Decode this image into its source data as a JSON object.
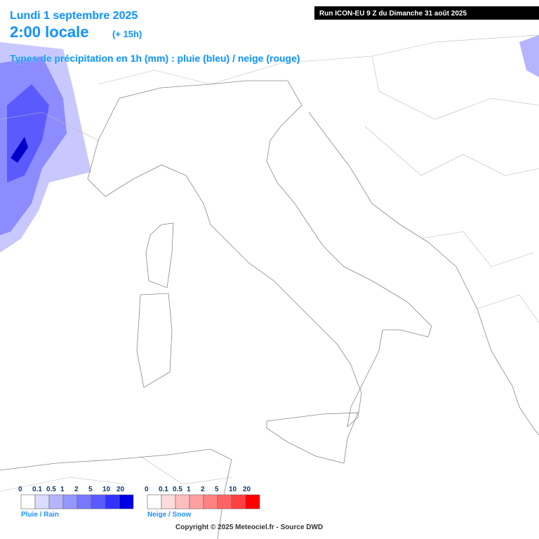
{
  "header": {
    "date": "Lundi 1 septembre 2025",
    "time": "2:00 locale",
    "lead": "(+ 15h)",
    "subtitle": "Types de précipitation en 1h (mm) : pluie (bleu) / neige (rouge)",
    "run": "Run ICON-EU 9 Z du Dimanche 31 août 2025"
  },
  "legends": [
    {
      "label": "Pluie / Rain",
      "ticks": [
        "0",
        "0.1",
        "0.5",
        "1",
        "2",
        "5",
        "10",
        "20"
      ],
      "colors": [
        "#ffffff",
        "#dcdcff",
        "#b4b4ff",
        "#9696ff",
        "#7878ff",
        "#5a5aff",
        "#3232ff",
        "#0000e6"
      ]
    },
    {
      "label": "Neige / Snow",
      "ticks": [
        "0",
        "0.1",
        "0.5",
        "1",
        "2",
        "5",
        "10",
        "20"
      ],
      "colors": [
        "#ffffff",
        "#ffdcdc",
        "#ffbebe",
        "#ffa0a0",
        "#ff8282",
        "#ff6464",
        "#ff4040",
        "#ff0000"
      ]
    }
  ],
  "footer": {
    "copyright": "Copyright © 2025 Meteociel.fr - Source DWD"
  }
}
